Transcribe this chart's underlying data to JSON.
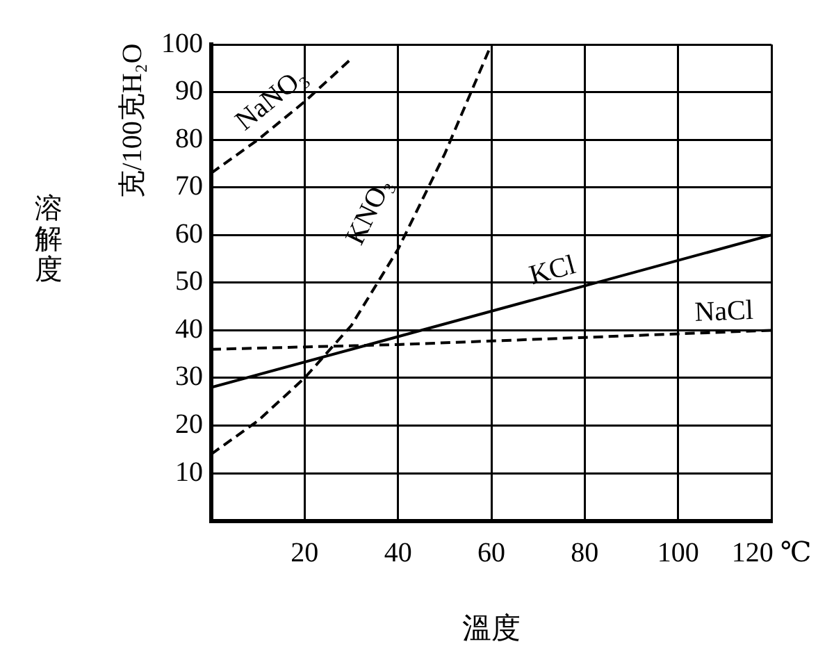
{
  "chart_data": {
    "type": "line",
    "xlabel": "溫度",
    "ylabel": "溶解度",
    "annotations": [
      "克/100克H₂O"
    ],
    "xlim": [
      0,
      120
    ],
    "xticks": [
      20,
      40,
      60,
      80,
      100,
      {
        "value": 120,
        "label": "120 ℃"
      }
    ],
    "ylim": [
      0,
      100
    ],
    "yticks": [
      10,
      20,
      30,
      40,
      50,
      60,
      70,
      80,
      90,
      100
    ],
    "grid": true,
    "legend": false,
    "marker": "none",
    "series": [
      {
        "name": "NaNO₃",
        "color": "#000000",
        "line_style": "dashed",
        "x": [
          0,
          10,
          20,
          30
        ],
        "values": [
          73,
          80,
          88,
          97
        ]
      },
      {
        "name": "KNO₃",
        "color": "#000000",
        "line_style": "dashed",
        "x": [
          0,
          10,
          20,
          30,
          40,
          50,
          60
        ],
        "values": [
          14,
          21,
          30,
          41,
          57,
          77,
          100
        ]
      },
      {
        "name": "KCl",
        "color": "#000000",
        "line_style": "solid",
        "x": [
          0,
          120
        ],
        "values": [
          28,
          60
        ]
      },
      {
        "name": "NaCl",
        "color": "#000000",
        "line_style": "dashed",
        "x": [
          0,
          40,
          80,
          120
        ],
        "values": [
          36,
          37,
          38.5,
          40
        ]
      }
    ]
  }
}
